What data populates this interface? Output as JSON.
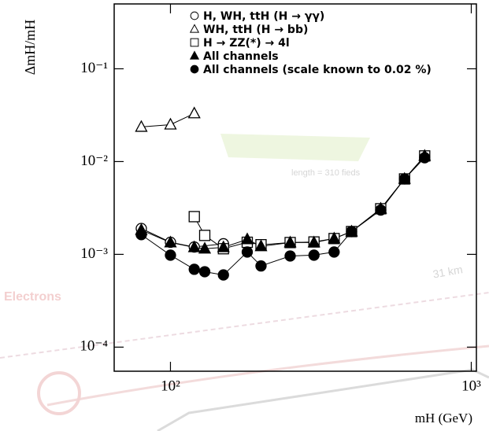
{
  "chart_data": {
    "type": "line",
    "y_label": "ΔmH/mH",
    "x_label": "mH (GeV)",
    "log_x": true,
    "log_y": true,
    "xlim": [
      65,
      1040
    ],
    "ylim": [
      5.5e-05,
      0.5
    ],
    "xticks": [
      {
        "value": 100,
        "label": "10²"
      },
      {
        "value": 1000,
        "label": "10³"
      }
    ],
    "yticks": [
      {
        "value": 0.0001,
        "label": "10⁻⁴"
      },
      {
        "value": 0.001,
        "label": "10⁻³"
      },
      {
        "value": 0.01,
        "label": "10⁻²"
      },
      {
        "value": 0.1,
        "label": "10⁻¹"
      }
    ],
    "legend": "top-right",
    "series": [
      {
        "name": "H, WH, ttH (H → γγ)",
        "marker": "circle-open",
        "color": "#000000",
        "x": [
          80,
          100,
          120,
          150
        ],
        "values": [
          0.0019,
          0.00135,
          0.0012,
          0.0013
        ]
      },
      {
        "name": "WH, ttH (H → bb)",
        "marker": "triangle-open",
        "color": "#000000",
        "x": [
          80,
          100,
          120
        ],
        "values": [
          0.0236,
          0.025,
          0.033
        ]
      },
      {
        "name": "H → ZZ(*) → 4l",
        "marker": "square-open",
        "color": "#000000",
        "x": [
          120,
          130,
          150,
          180,
          200,
          250,
          300,
          350,
          400,
          500,
          600,
          700
        ],
        "values": [
          0.00255,
          0.0016,
          0.00115,
          0.00135,
          0.00127,
          0.00134,
          0.00136,
          0.00148,
          0.00176,
          0.0031,
          0.0065,
          0.0115
        ]
      },
      {
        "name": "All channels",
        "marker": "triangle-filled",
        "color": "#000000",
        "x": [
          80,
          100,
          120,
          130,
          150,
          180,
          200,
          250,
          300,
          350,
          400,
          500,
          600,
          700
        ],
        "values": [
          0.00183,
          0.00134,
          0.00119,
          0.00115,
          0.00119,
          0.00145,
          0.00122,
          0.00134,
          0.00134,
          0.00148,
          0.00176,
          0.0031,
          0.0065,
          0.0115
        ]
      },
      {
        "name": "All channels (scale known to 0.02 %)",
        "marker": "circle-filled",
        "color": "#000000",
        "x": [
          80,
          100,
          120,
          130,
          150,
          180,
          200,
          250,
          300,
          350,
          400,
          500,
          600,
          700
        ],
        "values": [
          0.00163,
          0.00098,
          0.00069,
          0.00065,
          0.0006,
          0.00106,
          0.00075,
          0.00096,
          0.00098,
          0.00106,
          0.00176,
          0.003,
          0.0065,
          0.011
        ]
      }
    ]
  },
  "watermark": {
    "left": "Electrons",
    "field": "length = 310 fieds",
    "distance": "31 km"
  }
}
